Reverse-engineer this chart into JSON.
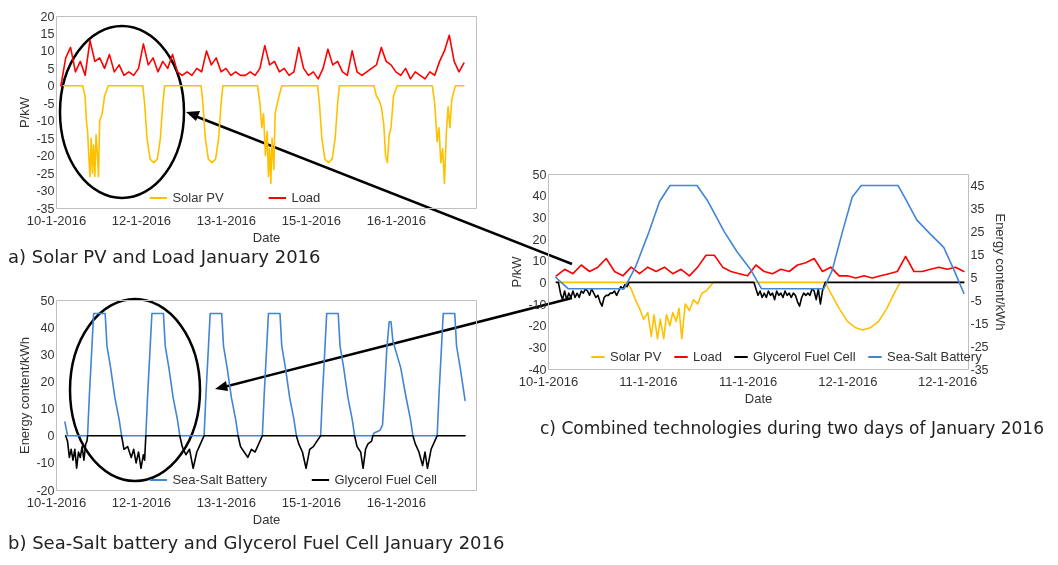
{
  "chart_data": [
    {
      "type": "line",
      "xlabel": "Date",
      "ylabel": "P/kW",
      "xlim": [
        "2016-01-10T19:00",
        "2016-01-18T00:00"
      ],
      "xticks": [
        {
          "value": "2016-01-10T19:00",
          "label": "10-1-2016"
        },
        {
          "value": "2016-01-12T06:00",
          "label": "12-1-2016"
        },
        {
          "value": "2016-01-13T17:00",
          "label": "13-1-2016"
        },
        {
          "value": "2016-01-15T04:00",
          "label": "15-1-2016"
        },
        {
          "value": "2016-01-16T15:00",
          "label": "16-1-2016"
        }
      ],
      "ylim": [
        -35,
        20
      ],
      "yticks": [
        -35,
        -30,
        -25,
        -20,
        -15,
        -10,
        -5,
        0,
        5,
        10,
        15,
        20
      ],
      "legend": "bottom",
      "annotations": [
        "a) Solar PV and Load January 2016"
      ],
      "series": [
        {
          "name": "Solar PV",
          "color": "#ffc000",
          "x": [
            "2016-01-10T22:00",
            "2016-01-11T06:00",
            "2016-01-11T07:00",
            "2016-01-11T07:30",
            "2016-01-11T08:00",
            "2016-01-11T08:30",
            "2016-01-11T09:00",
            "2016-01-11T09:30",
            "2016-01-11T10:00",
            "2016-01-11T10:30",
            "2016-01-11T11:00",
            "2016-01-11T11:30",
            "2016-01-11T12:00",
            "2016-01-11T12:30",
            "2016-01-11T13:00",
            "2016-01-11T14:00",
            "2016-01-11T15:00",
            "2016-01-11T16:30",
            "2016-01-12T06:45",
            "2016-01-12T07:30",
            "2016-01-12T08:30",
            "2016-01-12T09:45",
            "2016-01-12T11:15",
            "2016-01-12T12:45",
            "2016-01-12T14:00",
            "2016-01-12T15:00",
            "2016-01-12T15:45",
            "2016-01-13T06:45",
            "2016-01-13T07:30",
            "2016-01-13T08:30",
            "2016-01-13T09:45",
            "2016-01-13T11:15",
            "2016-01-13T12:45",
            "2016-01-13T14:00",
            "2016-01-13T15:00",
            "2016-01-13T15:45",
            "2016-01-14T06:00",
            "2016-01-14T07:00",
            "2016-01-14T07:45",
            "2016-01-14T08:30",
            "2016-01-14T09:15",
            "2016-01-14T10:00",
            "2016-01-14T10:30",
            "2016-01-14T11:00",
            "2016-01-14T11:30",
            "2016-01-14T12:00",
            "2016-01-14T12:45",
            "2016-01-14T13:15",
            "2016-01-14T14:30",
            "2016-01-14T16:00",
            "2016-01-15T06:45",
            "2016-01-15T07:30",
            "2016-01-15T08:30",
            "2016-01-15T09:45",
            "2016-01-15T11:15",
            "2016-01-15T12:45",
            "2016-01-15T14:00",
            "2016-01-15T15:00",
            "2016-01-15T15:45",
            "2016-01-16T06:00",
            "2016-01-16T07:00",
            "2016-01-16T08:00",
            "2016-01-16T09:00",
            "2016-01-16T10:00",
            "2016-01-16T10:45",
            "2016-01-16T11:30",
            "2016-01-16T12:15",
            "2016-01-16T13:00",
            "2016-01-16T14:00",
            "2016-01-16T15:30",
            "2016-01-17T06:00",
            "2016-01-17T07:00",
            "2016-01-17T08:00",
            "2016-01-17T08:45",
            "2016-01-17T09:30",
            "2016-01-17T10:15",
            "2016-01-17T11:00",
            "2016-01-17T11:45",
            "2016-01-17T12:30",
            "2016-01-17T13:15",
            "2016-01-17T14:00",
            "2016-01-17T15:30",
            "2016-01-17T19:00"
          ],
          "values": [
            0,
            0,
            -3,
            -10,
            -13,
            -20,
            -26,
            -15,
            -25,
            -17,
            -26,
            -14,
            -19,
            -26,
            -10,
            -8,
            -3,
            0,
            0,
            -5,
            -15,
            -21,
            -22,
            -21,
            -15,
            -5,
            0,
            0,
            -5,
            -15,
            -21,
            -22,
            -21,
            -15,
            -5,
            0,
            0,
            -5,
            -12,
            -8,
            -20,
            -13,
            -26,
            -18,
            -28,
            -15,
            -24,
            -8,
            -4,
            0,
            0,
            -5,
            -15,
            -21,
            -22,
            -21,
            -15,
            -5,
            0,
            0,
            -3,
            -4,
            -6,
            -11,
            -20,
            -22,
            -14,
            -12,
            -3,
            0,
            0,
            -5,
            -16,
            -12,
            -22,
            -18,
            -28,
            -14,
            -6,
            -12,
            -4,
            0,
            0
          ]
        },
        {
          "name": "Load",
          "color": "#ff0000",
          "x": [
            "2016-01-10T21:00",
            "2016-01-10T23:00",
            "2016-01-11T01:00",
            "2016-01-11T03:00",
            "2016-01-11T05:00",
            "2016-01-11T07:00",
            "2016-01-11T09:00",
            "2016-01-11T11:00",
            "2016-01-11T13:00",
            "2016-01-11T15:00",
            "2016-01-11T17:00",
            "2016-01-11T19:00",
            "2016-01-11T21:00",
            "2016-01-11T23:00",
            "2016-01-12T01:00",
            "2016-01-12T03:00",
            "2016-01-12T05:00",
            "2016-01-12T07:00",
            "2016-01-12T09:00",
            "2016-01-12T11:00",
            "2016-01-12T13:00",
            "2016-01-12T15:00",
            "2016-01-12T17:00",
            "2016-01-12T19:00",
            "2016-01-12T21:00",
            "2016-01-12T23:00",
            "2016-01-13T01:00",
            "2016-01-13T03:00",
            "2016-01-13T05:00",
            "2016-01-13T07:00",
            "2016-01-13T09:00",
            "2016-01-13T11:00",
            "2016-01-13T13:00",
            "2016-01-13T15:00",
            "2016-01-13T17:00",
            "2016-01-13T19:00",
            "2016-01-13T21:00",
            "2016-01-13T23:00",
            "2016-01-14T01:00",
            "2016-01-14T03:00",
            "2016-01-14T05:00",
            "2016-01-14T07:00",
            "2016-01-14T09:00",
            "2016-01-14T11:00",
            "2016-01-14T13:00",
            "2016-01-14T15:00",
            "2016-01-14T17:00",
            "2016-01-14T19:00",
            "2016-01-14T21:00",
            "2016-01-14T23:00",
            "2016-01-15T01:00",
            "2016-01-15T03:00",
            "2016-01-15T05:00",
            "2016-01-15T07:00",
            "2016-01-15T09:00",
            "2016-01-15T11:00",
            "2016-01-15T13:00",
            "2016-01-15T15:00",
            "2016-01-15T17:00",
            "2016-01-15T19:00",
            "2016-01-15T21:00",
            "2016-01-15T23:00",
            "2016-01-16T01:00",
            "2016-01-16T03:00",
            "2016-01-16T05:00",
            "2016-01-16T07:00",
            "2016-01-16T09:00",
            "2016-01-16T11:00",
            "2016-01-16T13:00",
            "2016-01-16T15:00",
            "2016-01-16T17:00",
            "2016-01-16T19:00",
            "2016-01-16T21:00",
            "2016-01-16T23:00",
            "2016-01-17T01:00",
            "2016-01-17T03:00",
            "2016-01-17T05:00",
            "2016-01-17T07:00",
            "2016-01-17T09:00",
            "2016-01-17T11:00",
            "2016-01-17T13:00",
            "2016-01-17T15:00",
            "2016-01-17T17:00",
            "2016-01-17T19:00"
          ],
          "values": [
            0,
            8,
            11,
            4,
            7,
            3,
            13,
            7,
            8,
            5,
            9,
            4,
            6,
            3,
            4,
            3,
            5,
            12,
            6,
            8,
            4,
            7,
            5,
            9,
            4,
            3,
            4,
            3,
            5,
            4,
            10,
            6,
            8,
            4,
            5,
            3,
            4,
            3,
            3,
            4,
            3,
            5,
            11.5,
            6,
            7,
            4,
            5,
            3,
            4,
            11,
            5,
            3,
            4,
            2,
            5,
            10.5,
            6,
            7,
            4,
            3,
            10,
            4,
            3,
            4,
            5,
            6,
            11,
            7,
            6,
            4,
            3,
            5,
            2,
            4,
            3,
            2,
            4,
            3,
            7,
            10,
            14.5,
            7,
            4,
            6.5
          ]
        }
      ]
    },
    {
      "type": "line",
      "xlabel": "Date",
      "ylabel": "Energy content/kWh",
      "xlim": [
        "2016-01-10T19:00",
        "2016-01-18T00:00"
      ],
      "xticks": [
        {
          "value": "2016-01-10T19:00",
          "label": "10-1-2016"
        },
        {
          "value": "2016-01-12T06:00",
          "label": "12-1-2016"
        },
        {
          "value": "2016-01-13T17:00",
          "label": "13-1-2016"
        },
        {
          "value": "2016-01-15T04:00",
          "label": "15-1-2016"
        },
        {
          "value": "2016-01-16T15:00",
          "label": "16-1-2016"
        }
      ],
      "ylim": [
        -20,
        50
      ],
      "yticks": [
        -20,
        -10,
        0,
        10,
        20,
        30,
        40,
        50
      ],
      "legend": "bottom",
      "annotations": [
        "b) Sea-Salt battery and Glycerol Fuel Cell January 2016"
      ],
      "series": [
        {
          "name": "Sea-Salt Battery",
          "color": "#4285d4",
          "x": [
            "2016-01-10T22:40",
            "2016-01-10T23:45",
            "2016-01-11T08:00",
            "2016-01-11T08:45",
            "2016-01-11T09:45",
            "2016-01-11T10:30",
            "2016-01-11T15:15",
            "2016-01-11T16:00",
            "2016-01-11T17:30",
            "2016-01-11T19:15",
            "2016-01-11T21:00",
            "2016-01-11T22:00",
            "2016-01-12T08:00",
            "2016-01-12T08:45",
            "2016-01-12T09:45",
            "2016-01-12T10:30",
            "2016-01-12T15:15",
            "2016-01-12T16:00",
            "2016-01-12T17:30",
            "2016-01-12T19:15",
            "2016-01-12T21:00",
            "2016-01-12T22:00",
            "2016-01-13T08:00",
            "2016-01-13T08:45",
            "2016-01-13T09:45",
            "2016-01-13T10:30",
            "2016-01-13T15:15",
            "2016-01-13T16:00",
            "2016-01-13T17:30",
            "2016-01-13T19:15",
            "2016-01-13T21:00",
            "2016-01-13T22:00",
            "2016-01-14T08:00",
            "2016-01-14T08:45",
            "2016-01-14T09:45",
            "2016-01-14T10:30",
            "2016-01-14T15:15",
            "2016-01-14T16:00",
            "2016-01-14T17:30",
            "2016-01-14T19:15",
            "2016-01-14T21:00",
            "2016-01-14T22:00",
            "2016-01-15T08:00",
            "2016-01-15T08:45",
            "2016-01-15T09:45",
            "2016-01-15T10:30",
            "2016-01-15T15:15",
            "2016-01-15T16:00",
            "2016-01-15T17:30",
            "2016-01-15T19:15",
            "2016-01-15T21:00",
            "2016-01-15T22:00",
            "2016-01-16T05:30",
            "2016-01-16T06:00",
            "2016-01-16T08:30",
            "2016-01-16T09:30",
            "2016-01-16T10:15",
            "2016-01-16T11:15",
            "2016-01-16T12:15",
            "2016-01-16T13:00",
            "2016-01-16T13:45",
            "2016-01-16T17:00",
            "2016-01-16T19:00",
            "2016-01-16T21:00",
            "2016-01-16T22:00",
            "2016-01-17T08:00",
            "2016-01-17T08:45",
            "2016-01-17T09:45",
            "2016-01-17T10:30",
            "2016-01-17T15:15",
            "2016-01-17T16:00",
            "2016-01-17T17:30",
            "2016-01-17T19:30"
          ],
          "values": [
            5,
            0,
            0,
            15,
            32,
            45,
            45,
            33,
            25,
            14,
            6,
            0,
            0,
            15,
            32,
            45,
            45,
            33,
            25,
            14,
            6,
            0,
            0,
            15,
            32,
            45,
            45,
            33,
            25,
            14,
            6,
            0,
            0,
            15,
            32,
            45,
            45,
            33,
            25,
            14,
            6,
            0,
            0,
            15,
            32,
            45,
            45,
            33,
            25,
            14,
            6,
            0,
            0,
            1,
            2,
            4,
            15,
            32,
            42,
            42,
            35,
            25,
            15,
            6,
            0,
            0,
            15,
            32,
            45,
            45,
            33,
            25,
            13
          ]
        },
        {
          "name": "Glycerol Fuel Cell",
          "color": "#000000",
          "x": [
            "2016-01-10T23:00",
            "2016-01-10T23:45",
            "2016-01-11T00:30",
            "2016-01-11T01:15",
            "2016-01-11T02:00",
            "2016-01-11T02:45",
            "2016-01-11T03:30",
            "2016-01-11T04:15",
            "2016-01-11T05:00",
            "2016-01-11T05:45",
            "2016-01-11T06:30",
            "2016-01-11T07:15",
            "2016-01-11T07:45",
            "2016-01-11T08:00",
            "2016-01-11T22:00",
            "2016-01-11T23:00",
            "2016-01-12T00:30",
            "2016-01-12T02:00",
            "2016-01-12T03:00",
            "2016-01-12T04:00",
            "2016-01-12T05:00",
            "2016-01-12T06:00",
            "2016-01-12T07:00",
            "2016-01-12T07:30",
            "2016-01-12T08:00",
            "2016-01-12T22:00",
            "2016-01-12T23:00",
            "2016-01-13T00:30",
            "2016-01-13T02:00",
            "2016-01-13T03:30",
            "2016-01-13T05:00",
            "2016-01-13T06:00",
            "2016-01-13T07:00",
            "2016-01-13T08:00",
            "2016-01-13T22:00",
            "2016-01-13T23:00",
            "2016-01-14T00:30",
            "2016-01-14T02:00",
            "2016-01-14T03:30",
            "2016-01-14T05:00",
            "2016-01-14T06:30",
            "2016-01-14T08:00",
            "2016-01-14T22:00",
            "2016-01-14T23:00",
            "2016-01-15T00:30",
            "2016-01-15T02:00",
            "2016-01-15T03:30",
            "2016-01-15T05:00",
            "2016-01-15T06:30",
            "2016-01-15T08:00",
            "2016-01-15T22:00",
            "2016-01-15T23:00",
            "2016-01-16T00:30",
            "2016-01-16T01:30",
            "2016-01-16T02:30",
            "2016-01-16T03:30",
            "2016-01-16T05:00",
            "2016-01-16T05:30",
            "2016-01-16T22:00",
            "2016-01-16T23:00",
            "2016-01-17T00:30",
            "2016-01-17T02:00",
            "2016-01-17T03:00",
            "2016-01-17T04:00",
            "2016-01-17T05:30",
            "2016-01-17T07:00",
            "2016-01-17T08:00",
            "2016-01-17T19:30"
          ],
          "values": [
            0,
            -2,
            -8,
            -5,
            -9,
            -5,
            -12,
            -6,
            -8,
            -4,
            -9,
            -3,
            -2,
            0,
            0,
            -5,
            -4,
            -8,
            -5,
            -10,
            -6,
            -12,
            -7,
            -9,
            0,
            0,
            -4,
            -7,
            -5,
            -12,
            -6,
            -4,
            -2,
            0,
            0,
            -4,
            -6,
            -8,
            -5,
            -6,
            -3,
            0,
            0,
            -3,
            -6,
            -12,
            -5,
            -4,
            -2,
            0,
            0,
            -4,
            -6,
            -12,
            -5,
            -3,
            -2,
            0,
            0,
            -3,
            -6,
            -11,
            -6,
            -12,
            -5,
            -2,
            0,
            0
          ]
        }
      ]
    },
    {
      "type": "line",
      "xlabel": "Date",
      "ylabel": "P/kW",
      "y2label": "Energy content/kWh",
      "xlim": [
        "2016-01-10T22:00",
        "2016-01-13T00:30"
      ],
      "xticks": [
        {
          "value": "2016-01-10T22:00",
          "label": "10-1-2016"
        },
        {
          "value": "2016-01-11T10:00",
          "label": "11-1-2016"
        },
        {
          "value": "2016-01-11T22:00",
          "label": "11-1-2016"
        },
        {
          "value": "2016-01-12T10:00",
          "label": "12-1-2016"
        },
        {
          "value": "2016-01-12T22:00",
          "label": "12-1-2016"
        }
      ],
      "ylim": [
        -40,
        50
      ],
      "yticks": [
        -40,
        -30,
        -20,
        -10,
        0,
        10,
        20,
        30,
        40,
        50
      ],
      "y2lim": [
        -35,
        50
      ],
      "y2ticks": [
        -35,
        -25,
        -15,
        -5,
        5,
        15,
        25,
        35,
        45
      ],
      "legend": "bottom",
      "annotations": [
        "c) Combined technologies during two days of January 2016"
      ],
      "series": [
        {
          "name": "Solar PV",
          "color": "#ffc000",
          "x": [
            "2016-01-10T23:00",
            "2016-01-11T07:30",
            "2016-01-11T08:00",
            "2016-01-11T08:30",
            "2016-01-11T09:00",
            "2016-01-11T09:30",
            "2016-01-11T10:00",
            "2016-01-11T10:25",
            "2016-01-11T10:45",
            "2016-01-11T11:10",
            "2016-01-11T11:30",
            "2016-01-11T11:55",
            "2016-01-11T12:15",
            "2016-01-11T12:40",
            "2016-01-11T13:00",
            "2016-01-11T13:25",
            "2016-01-11T13:45",
            "2016-01-11T14:05",
            "2016-01-11T14:30",
            "2016-01-11T15:00",
            "2016-01-11T15:30",
            "2016-01-11T16:00",
            "2016-01-11T16:30",
            "2016-01-11T17:00",
            "2016-01-11T17:55",
            "2016-01-12T07:20",
            "2016-01-12T08:00",
            "2016-01-12T09:00",
            "2016-01-12T10:00",
            "2016-01-12T11:00",
            "2016-01-12T11:50",
            "2016-01-12T12:45",
            "2016-01-12T13:45",
            "2016-01-12T14:45",
            "2016-01-12T15:30",
            "2016-01-12T16:20",
            "2016-01-13T00:00"
          ],
          "values": [
            0,
            0,
            -3,
            -8,
            -12,
            -17,
            -14,
            -25,
            -15,
            -26,
            -17,
            -26,
            -15,
            -20,
            -14,
            -18,
            -12,
            -26,
            -10,
            -13,
            -8,
            -10,
            -5,
            -4,
            0,
            0,
            -5,
            -12,
            -18,
            -21,
            -22,
            -21,
            -18,
            -12,
            -6,
            0,
            0
          ]
        },
        {
          "name": "Load",
          "color": "#ff0000",
          "x": [
            "2016-01-10T23:00",
            "2016-01-11T00:00",
            "2016-01-11T01:00",
            "2016-01-11T02:00",
            "2016-01-11T03:00",
            "2016-01-11T04:00",
            "2016-01-11T05:00",
            "2016-01-11T06:00",
            "2016-01-11T07:00",
            "2016-01-11T08:00",
            "2016-01-11T09:00",
            "2016-01-11T10:00",
            "2016-01-11T11:00",
            "2016-01-11T12:00",
            "2016-01-11T13:00",
            "2016-01-11T14:00",
            "2016-01-11T15:00",
            "2016-01-11T16:00",
            "2016-01-11T17:00",
            "2016-01-11T18:00",
            "2016-01-11T19:00",
            "2016-01-11T20:00",
            "2016-01-11T21:00",
            "2016-01-11T22:00",
            "2016-01-11T23:00",
            "2016-01-12T00:00",
            "2016-01-12T01:00",
            "2016-01-12T02:00",
            "2016-01-12T03:00",
            "2016-01-12T04:00",
            "2016-01-12T05:00",
            "2016-01-12T06:00",
            "2016-01-12T07:00",
            "2016-01-12T08:00",
            "2016-01-12T09:00",
            "2016-01-12T10:00",
            "2016-01-12T11:00",
            "2016-01-12T12:00",
            "2016-01-12T13:00",
            "2016-01-12T14:00",
            "2016-01-12T15:00",
            "2016-01-12T16:00",
            "2016-01-12T17:00",
            "2016-01-12T18:00",
            "2016-01-12T19:00",
            "2016-01-12T20:00",
            "2016-01-12T21:00",
            "2016-01-12T22:00",
            "2016-01-12T23:00",
            "2016-01-13T00:00"
          ],
          "values": [
            3,
            6,
            4,
            8,
            5,
            7,
            11,
            5,
            3,
            7,
            4,
            7,
            5,
            7,
            4,
            6,
            3,
            7,
            12.5,
            12.5,
            7,
            5,
            4,
            3,
            8,
            5,
            4,
            6,
            5,
            8,
            9,
            11,
            5,
            7,
            3,
            3,
            2,
            3,
            2,
            3,
            4,
            5,
            12,
            5,
            5,
            6,
            7,
            6,
            7,
            5
          ]
        },
        {
          "name": "Glycerol Fuel Cell",
          "color": "#000000",
          "x": [
            "2016-01-10T23:00",
            "2016-01-10T23:15",
            "2016-01-10T23:30",
            "2016-01-10T23:45",
            "2016-01-11T00:00",
            "2016-01-11T00:15",
            "2016-01-11T00:30",
            "2016-01-11T00:45",
            "2016-01-11T01:00",
            "2016-01-11T01:15",
            "2016-01-11T01:30",
            "2016-01-11T01:45",
            "2016-01-11T02:00",
            "2016-01-11T02:15",
            "2016-01-11T02:30",
            "2016-01-11T02:45",
            "2016-01-11T03:00",
            "2016-01-11T03:15",
            "2016-01-11T03:30",
            "2016-01-11T03:45",
            "2016-01-11T04:00",
            "2016-01-11T04:15",
            "2016-01-11T04:30",
            "2016-01-11T04:45",
            "2016-01-11T05:00",
            "2016-01-11T05:15",
            "2016-01-11T05:30",
            "2016-01-11T05:45",
            "2016-01-11T06:00",
            "2016-01-11T06:15",
            "2016-01-11T06:30",
            "2016-01-11T06:45",
            "2016-01-11T07:00",
            "2016-01-11T07:15",
            "2016-01-11T07:30",
            "2016-01-11T07:45",
            "2016-01-11T22:45",
            "2016-01-11T23:00",
            "2016-01-11T23:15",
            "2016-01-11T23:30",
            "2016-01-11T23:45",
            "2016-01-12T00:00",
            "2016-01-12T00:15",
            "2016-01-12T00:30",
            "2016-01-12T00:45",
            "2016-01-12T01:00",
            "2016-01-12T01:15",
            "2016-01-12T01:30",
            "2016-01-12T01:45",
            "2016-01-12T02:00",
            "2016-01-12T02:15",
            "2016-01-12T02:30",
            "2016-01-12T02:45",
            "2016-01-12T03:00",
            "2016-01-12T03:15",
            "2016-01-12T03:30",
            "2016-01-12T03:45",
            "2016-01-12T04:00",
            "2016-01-12T04:15",
            "2016-01-12T04:30",
            "2016-01-12T04:45",
            "2016-01-12T05:00",
            "2016-01-12T05:15",
            "2016-01-12T05:30",
            "2016-01-12T05:45",
            "2016-01-12T06:00",
            "2016-01-12T06:15",
            "2016-01-12T06:30",
            "2016-01-12T06:45",
            "2016-01-12T07:00",
            "2016-01-12T07:20",
            "2016-01-13T00:00"
          ],
          "values": [
            0,
            0,
            -5,
            -8,
            -4,
            -8,
            -5,
            -7,
            -4,
            -7,
            -5,
            -7,
            -4,
            -5,
            -3,
            -4,
            -6,
            -3,
            -5,
            -7,
            -6,
            -9,
            -11,
            -7,
            -6,
            -6,
            -5,
            -5,
            -4,
            -6,
            -4,
            -2,
            -3,
            -1,
            -2,
            0,
            0,
            -3,
            -6,
            -4,
            -7,
            -5,
            -7,
            -4,
            -6,
            -5,
            -8,
            -4,
            -6,
            -5,
            -7,
            -4,
            -6,
            -5,
            -7,
            -5,
            -6,
            -9,
            -11,
            -7,
            -5,
            -6,
            -5,
            -6,
            -3,
            -4,
            -8,
            -3,
            -10,
            -4,
            0,
            0
          ]
        },
        {
          "name": "Sea-Salt Battery",
          "color": "#4285d4",
          "axis": "y2",
          "x": [
            "2016-01-10T22:55",
            "2016-01-11T00:25",
            "2016-01-11T07:10",
            "2016-01-11T08:35",
            "2016-01-11T10:10",
            "2016-01-11T11:25",
            "2016-01-11T12:40",
            "2016-01-11T15:55",
            "2016-01-11T17:15",
            "2016-01-11T19:10",
            "2016-01-11T20:45",
            "2016-01-11T22:25",
            "2016-01-11T23:40",
            "2016-01-12T07:10",
            "2016-01-12T08:10",
            "2016-01-12T09:25",
            "2016-01-12T10:35",
            "2016-01-12T11:40",
            "2016-01-12T16:05",
            "2016-01-12T17:10",
            "2016-01-12T18:20",
            "2016-01-12T19:55",
            "2016-01-12T21:35",
            "2016-01-12T22:50",
            "2016-01-13T00:00"
          ],
          "values": [
            5,
            0,
            0,
            10,
            25,
            38,
            45,
            45,
            38,
            25,
            16,
            8,
            0,
            0,
            8,
            25,
            40,
            45,
            45,
            38,
            30,
            24,
            18,
            8,
            -2
          ]
        }
      ]
    }
  ]
}
